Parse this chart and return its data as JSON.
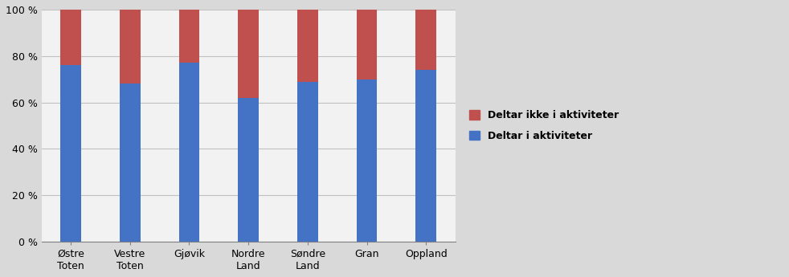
{
  "categories": [
    "Østre\nToten",
    "Vestre\nToten",
    "Gjøvik",
    "Nordre\nLand",
    "Søndre\nLand",
    "Gran",
    "Oppland"
  ],
  "deltar": [
    0.76,
    0.68,
    0.77,
    0.62,
    0.69,
    0.7,
    0.74
  ],
  "deltar_ikke": [
    0.24,
    0.32,
    0.23,
    0.38,
    0.31,
    0.3,
    0.26
  ],
  "color_deltar": "#4472C4",
  "color_deltar_ikke": "#C0504D",
  "legend_deltar_ikke": "Deltar ikke i aktiviteter",
  "legend_deltar": "Deltar i aktiviteter",
  "ylim": [
    0,
    1.0
  ],
  "yticks": [
    0.0,
    0.2,
    0.4,
    0.6,
    0.8,
    1.0
  ],
  "ytick_labels": [
    "0 %",
    "20 %",
    "40 %",
    "60 %",
    "80 %",
    "100 %"
  ],
  "background_color": "#D9D9D9",
  "plot_background": "#F2F2F2",
  "bar_width": 0.35,
  "figsize": [
    9.82,
    3.45
  ],
  "dpi": 100
}
